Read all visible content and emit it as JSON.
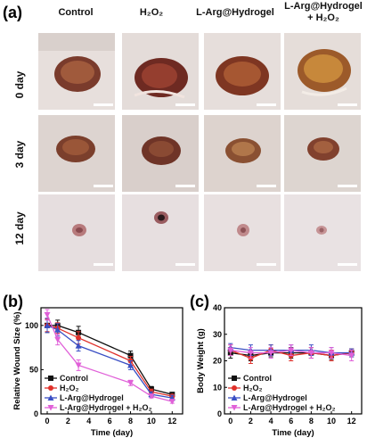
{
  "panel_labels": {
    "a": "(a)",
    "b": "(b)",
    "c": "(c)"
  },
  "photo_grid": {
    "columns": [
      {
        "line1": "Control",
        "line2": ""
      },
      {
        "line1": "H₂O₂",
        "line2": ""
      },
      {
        "line1": "L-Arg@Hydrogel",
        "line2": ""
      },
      {
        "line1": "L-Arg@Hydrogel",
        "line2": "+ H₂O₂"
      }
    ],
    "rows": [
      "0 day",
      "3 day",
      "12 day"
    ]
  },
  "chart_data": [
    {
      "type": "line",
      "panel": "(b)",
      "xlabel": "Time (day)",
      "ylabel": "Relative Wound Size (%)",
      "x": [
        0,
        1,
        3,
        8,
        10,
        12
      ],
      "xticks": [
        0,
        2,
        4,
        6,
        8,
        10,
        12
      ],
      "yticks": [
        0,
        50,
        100
      ],
      "xlim": [
        -0.6,
        13
      ],
      "ylim": [
        0,
        120
      ],
      "legend_position": "bottom-left",
      "series": [
        {
          "name": "Control",
          "color": "#111111",
          "marker": "square",
          "values": [
            100,
            100,
            92,
            66,
            28,
            22
          ],
          "errors": [
            8,
            6,
            7,
            5,
            3,
            2
          ]
        },
        {
          "name": "H₂O₂",
          "color": "#e0302a",
          "marker": "circle",
          "values": [
            100,
            97,
            86,
            60,
            25,
            20
          ],
          "errors": [
            7,
            6,
            7,
            5,
            3,
            2
          ]
        },
        {
          "name": "L-Arg@Hydrogel",
          "color": "#3a4fc4",
          "marker": "triangle-up",
          "values": [
            100,
            95,
            77,
            55,
            22,
            18
          ],
          "errors": [
            8,
            7,
            6,
            5,
            3,
            3
          ]
        },
        {
          "name": "L-Arg@Hydrogel + H₂O₂",
          "color": "#e060d8",
          "marker": "triangle-down",
          "values": [
            112,
            84,
            55,
            35,
            20,
            14
          ],
          "errors": [
            6,
            6,
            6,
            3,
            2,
            2
          ]
        }
      ]
    },
    {
      "type": "line",
      "panel": "(c)",
      "xlabel": "Time (day)",
      "ylabel": "Body Weight (g)",
      "x": [
        0,
        2,
        4,
        6,
        8,
        10,
        12
      ],
      "xticks": [
        0,
        2,
        4,
        6,
        8,
        10,
        12
      ],
      "yticks": [
        0,
        10,
        20,
        30,
        40
      ],
      "xlim": [
        -0.6,
        13
      ],
      "ylim": [
        0,
        40
      ],
      "legend_position": "bottom-left",
      "series": [
        {
          "name": "Control",
          "color": "#111111",
          "marker": "square",
          "values": [
            23,
            22,
            23,
            23,
            23,
            22,
            23
          ],
          "errors": [
            2,
            2,
            1.5,
            2,
            2,
            1.5,
            1.5
          ]
        },
        {
          "name": "H₂O₂",
          "color": "#e0302a",
          "marker": "circle",
          "values": [
            24,
            21,
            24,
            22,
            23,
            22,
            23
          ],
          "errors": [
            2,
            2,
            2,
            2,
            2,
            2,
            1.5
          ]
        },
        {
          "name": "L-Arg@Hydrogel",
          "color": "#3a4fc4",
          "marker": "triangle-up",
          "values": [
            25,
            24,
            24,
            24,
            24,
            23,
            23
          ],
          "errors": [
            1.5,
            2,
            2,
            2,
            2,
            2,
            1.5
          ]
        },
        {
          "name": "L-Arg@Hydrogel + H₂O₂",
          "color": "#e060d8",
          "marker": "triangle-down",
          "values": [
            24,
            23,
            23,
            24,
            23,
            23,
            22
          ],
          "errors": [
            2,
            2,
            2,
            2,
            2,
            2,
            2
          ]
        }
      ]
    }
  ]
}
